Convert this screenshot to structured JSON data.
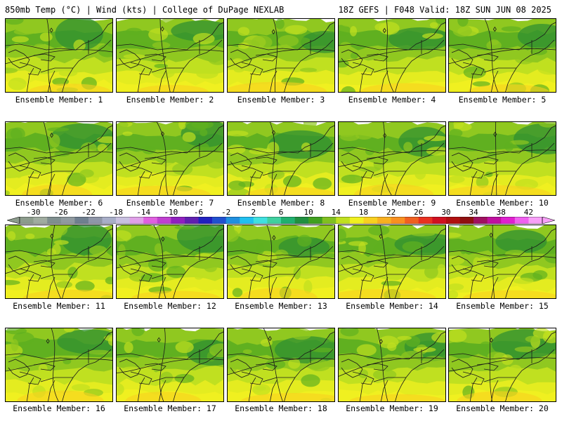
{
  "header": {
    "left_title": "850mb Temp (°C) | Wind (kts) | College of DuPage NEXLAB",
    "right_title": "18Z GEFS | F048 Valid: 18Z SUN JUN 08 2025"
  },
  "members": [
    {
      "label": "Ensemble Member: 1"
    },
    {
      "label": "Ensemble Member: 2"
    },
    {
      "label": "Ensemble Member: 3"
    },
    {
      "label": "Ensemble Member: 4"
    },
    {
      "label": "Ensemble Member: 5"
    },
    {
      "label": "Ensemble Member: 6"
    },
    {
      "label": "Ensemble Member: 7"
    },
    {
      "label": "Ensemble Member: 8"
    },
    {
      "label": "Ensemble Member: 9"
    },
    {
      "label": "Ensemble Member: 10"
    },
    {
      "label": "Ensemble Member: 11"
    },
    {
      "label": "Ensemble Member: 12"
    },
    {
      "label": "Ensemble Member: 13"
    },
    {
      "label": "Ensemble Member: 14"
    },
    {
      "label": "Ensemble Member: 15"
    },
    {
      "label": "Ensemble Member: 16"
    },
    {
      "label": "Ensemble Member: 17"
    },
    {
      "label": "Ensemble Member: 18"
    },
    {
      "label": "Ensemble Member: 19"
    },
    {
      "label": "Ensemble Member: 20"
    }
  ],
  "colorbar": {
    "ticks": [
      "-30",
      "-26",
      "-22",
      "-18",
      "-14",
      "-10",
      "-6",
      "-2",
      "2",
      "6",
      "10",
      "14",
      "18",
      "22",
      "26",
      "30",
      "34",
      "38",
      "42"
    ],
    "min": -32,
    "max": 44,
    "step": 2,
    "colors": [
      "#8c9c8c",
      "#a0aca0",
      "#7f8f8f",
      "#909aa0",
      "#6f7f8f",
      "#8f96a8",
      "#a8aec8",
      "#c8c0e0",
      "#e0a0e8",
      "#e060e0",
      "#c040d0",
      "#9020c0",
      "#6020b0",
      "#2020c0",
      "#2050d0",
      "#2090e0",
      "#20c0f0",
      "#40e0e0",
      "#40d0a0",
      "#20b070",
      "#209040",
      "#40a020",
      "#80c020",
      "#c0e020",
      "#f0f020",
      "#f8d020",
      "#f8b020",
      "#f89020",
      "#f06020",
      "#e83020",
      "#d01020",
      "#b01010",
      "#901010",
      "#a01060",
      "#c010a0",
      "#e020d0",
      "#f060f0",
      "#f8a0f8"
    ]
  }
}
